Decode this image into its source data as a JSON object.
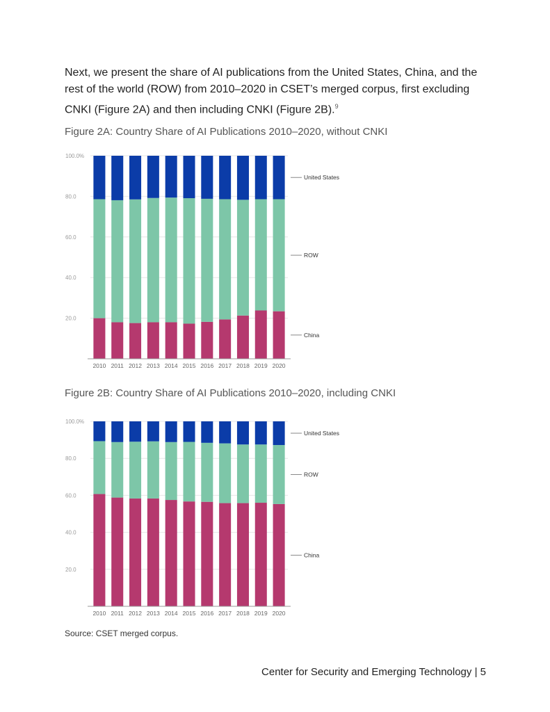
{
  "intro": {
    "text": "Next, we present the share of AI publications from the United States, China, and the rest of the world (ROW) from 2010–2020 in CSET’s merged corpus, first excluding CNKI (Figure 2A) and then including CNKI (Figure 2B).",
    "footnote": "9"
  },
  "figure_a": {
    "title": "Figure 2A: Country Share of AI Publications 2010–2020, without CNKI"
  },
  "figure_b": {
    "title": "Figure 2B: Country Share of AI Publications 2010–2020, including CNKI"
  },
  "source": "Source: CSET merged corpus.",
  "footer": {
    "org": "Center for Security and Emerging Technology",
    "separator": "|",
    "page": "5"
  },
  "colors": {
    "china": "#b5396e",
    "row": "#7dc6a8",
    "us": "#0b3ca8",
    "axis": "#999999",
    "grid": "#e6e6e6",
    "tick": "#9a9a9a"
  },
  "chart_data": [
    {
      "type": "bar",
      "stacked": true,
      "title": "Figure 2A: Country Share of AI Publications 2010–2020, without CNKI",
      "categories": [
        "2010",
        "2011",
        "2012",
        "2013",
        "2014",
        "2015",
        "2016",
        "2017",
        "2018",
        "2019",
        "2020"
      ],
      "series": [
        {
          "name": "China",
          "values": [
            20.0,
            18.0,
            17.6,
            18.0,
            18.0,
            17.3,
            18.2,
            19.4,
            21.3,
            23.8,
            23.4
          ]
        },
        {
          "name": "ROW",
          "values": [
            58.6,
            60.1,
            60.9,
            61.2,
            61.4,
            61.8,
            60.6,
            59.2,
            57.0,
            54.8,
            55.2
          ]
        },
        {
          "name": "United States",
          "values": [
            21.4,
            21.9,
            21.5,
            20.8,
            20.6,
            20.9,
            21.2,
            21.4,
            21.7,
            21.4,
            21.4
          ]
        }
      ],
      "ylim": [
        0,
        100
      ],
      "yticks": [
        "100.0%",
        "80.0",
        "60.0",
        "40.0",
        "20.0"
      ],
      "legend": [
        "United States",
        "ROW",
        "China"
      ],
      "legend_position": "right"
    },
    {
      "type": "bar",
      "stacked": true,
      "title": "Figure 2B: Country Share of AI Publications 2010–2020, including CNKI",
      "categories": [
        "2010",
        "2011",
        "2012",
        "2013",
        "2014",
        "2015",
        "2016",
        "2017",
        "2018",
        "2019",
        "2020"
      ],
      "series": [
        {
          "name": "China",
          "values": [
            60.7,
            58.8,
            58.3,
            58.3,
            57.5,
            56.7,
            56.5,
            55.8,
            55.8,
            56.0,
            55.3
          ]
        },
        {
          "name": "ROW",
          "values": [
            28.6,
            30.0,
            30.7,
            30.9,
            31.3,
            32.2,
            31.9,
            32.3,
            31.7,
            31.5,
            31.9
          ]
        },
        {
          "name": "United States",
          "values": [
            10.7,
            11.2,
            11.0,
            10.8,
            11.2,
            11.1,
            11.6,
            11.9,
            12.5,
            12.5,
            12.8
          ]
        }
      ],
      "ylim": [
        0,
        100
      ],
      "yticks": [
        "100.0%",
        "80.0",
        "60.0",
        "40.0",
        "20.0"
      ],
      "legend": [
        "United States",
        "ROW",
        "China"
      ],
      "legend_position": "right"
    }
  ]
}
